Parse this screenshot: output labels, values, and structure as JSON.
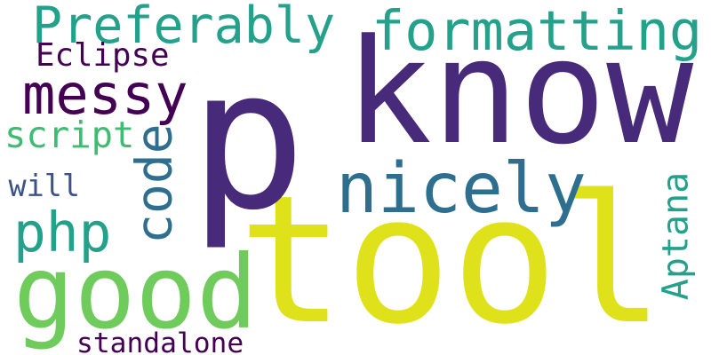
{
  "words": [
    {
      "text": "tool",
      "color": "#dfe21b"
    },
    {
      "text": "p",
      "color": "#472a7a"
    },
    {
      "text": "know",
      "color": "#472a7a"
    },
    {
      "text": "good",
      "color": "#6fcc5c"
    },
    {
      "text": "nicely",
      "color": "#2e6e8e"
    },
    {
      "text": "formatting",
      "color": "#23a18a"
    },
    {
      "text": "Preferably",
      "color": "#23a18a"
    },
    {
      "text": "messy",
      "color": "#440154"
    },
    {
      "text": "php",
      "color": "#23a18a"
    },
    {
      "text": "code",
      "color": "#2e6e8e"
    },
    {
      "text": "Aptana",
      "color": "#23a18a"
    },
    {
      "text": "script",
      "color": "#3fbc73"
    },
    {
      "text": "Eclipse",
      "color": "#440154"
    },
    {
      "text": "will",
      "color": "#3b528b"
    },
    {
      "text": "standalone",
      "color": "#440154"
    }
  ]
}
